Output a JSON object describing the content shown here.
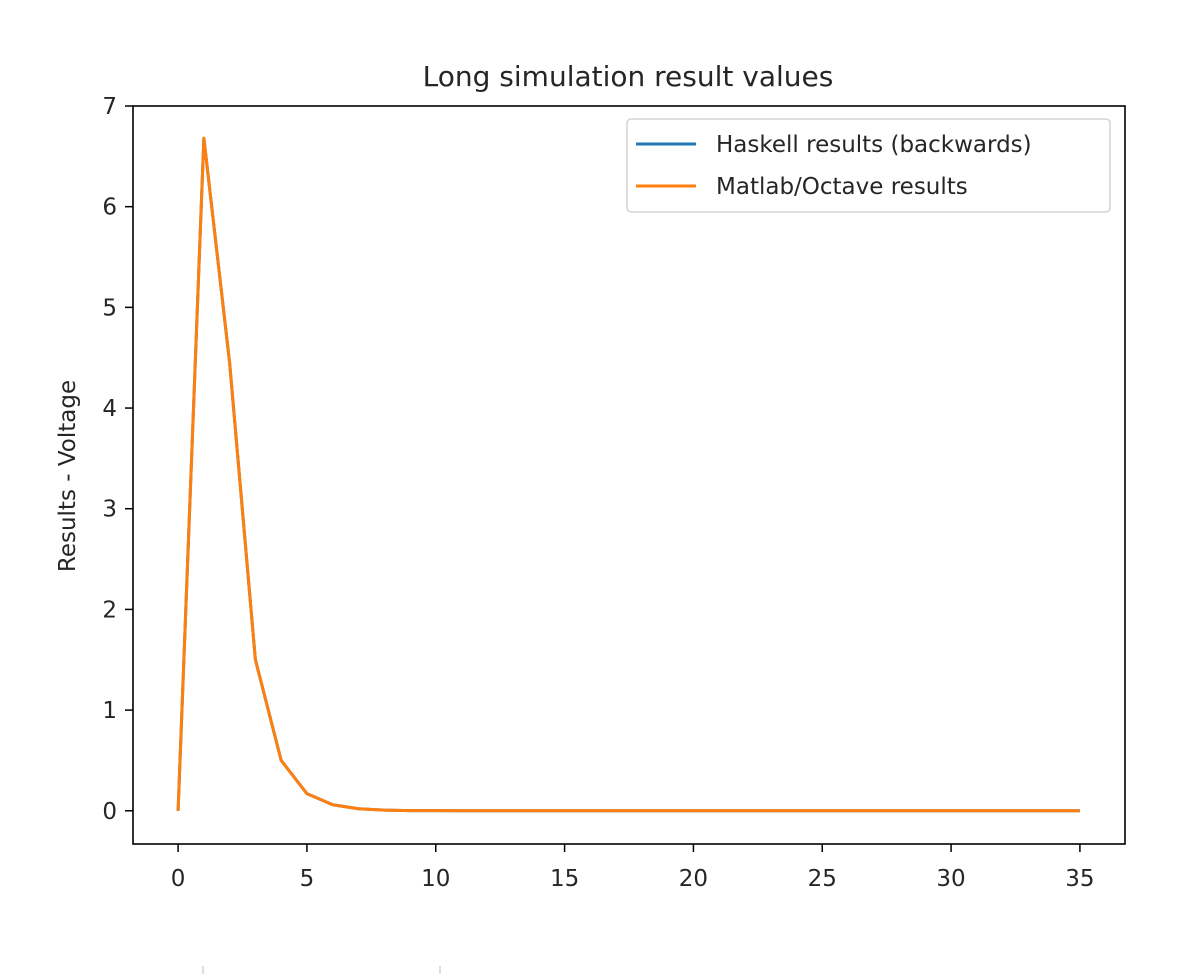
{
  "chart_data": {
    "type": "line",
    "title": "Long simulation result values",
    "xlabel": "",
    "ylabel": "Results - Voltage",
    "xlim": [
      -1.75,
      36.75
    ],
    "ylim": [
      -0.33,
      7.0
    ],
    "xticks": [
      0,
      5,
      10,
      15,
      20,
      25,
      30,
      35
    ],
    "yticks": [
      0,
      1,
      2,
      3,
      4,
      5,
      6,
      7
    ],
    "grid": false,
    "legend_position": "top-right",
    "x": [
      0,
      1,
      2,
      3,
      4,
      5,
      6,
      7,
      8,
      9,
      10,
      11,
      12,
      13,
      14,
      15,
      16,
      17,
      18,
      19,
      20,
      21,
      22,
      23,
      24,
      25,
      26,
      27,
      28,
      29,
      30,
      31,
      32,
      33,
      34,
      35
    ],
    "series": [
      {
        "name": "Haskell results (backwards)",
        "color": "#1f77b4",
        "values": [
          0,
          6.68,
          4.45,
          1.5,
          0.5,
          0.17,
          0.06,
          0.02,
          0.007,
          0.002,
          0.001,
          0,
          0,
          0,
          0,
          0,
          0,
          0,
          0,
          0,
          0,
          0,
          0,
          0,
          0,
          0,
          0,
          0,
          0,
          0,
          0,
          0,
          0,
          0,
          0,
          0
        ]
      },
      {
        "name": "Matlab/Octave results",
        "color": "#ff7f0e",
        "values": [
          0,
          6.68,
          4.45,
          1.5,
          0.5,
          0.17,
          0.06,
          0.02,
          0.007,
          0.002,
          0.001,
          0,
          0,
          0,
          0,
          0,
          0,
          0,
          0,
          0,
          0,
          0,
          0,
          0,
          0,
          0,
          0,
          0,
          0,
          0,
          0,
          0,
          0,
          0,
          0,
          0
        ]
      }
    ]
  }
}
